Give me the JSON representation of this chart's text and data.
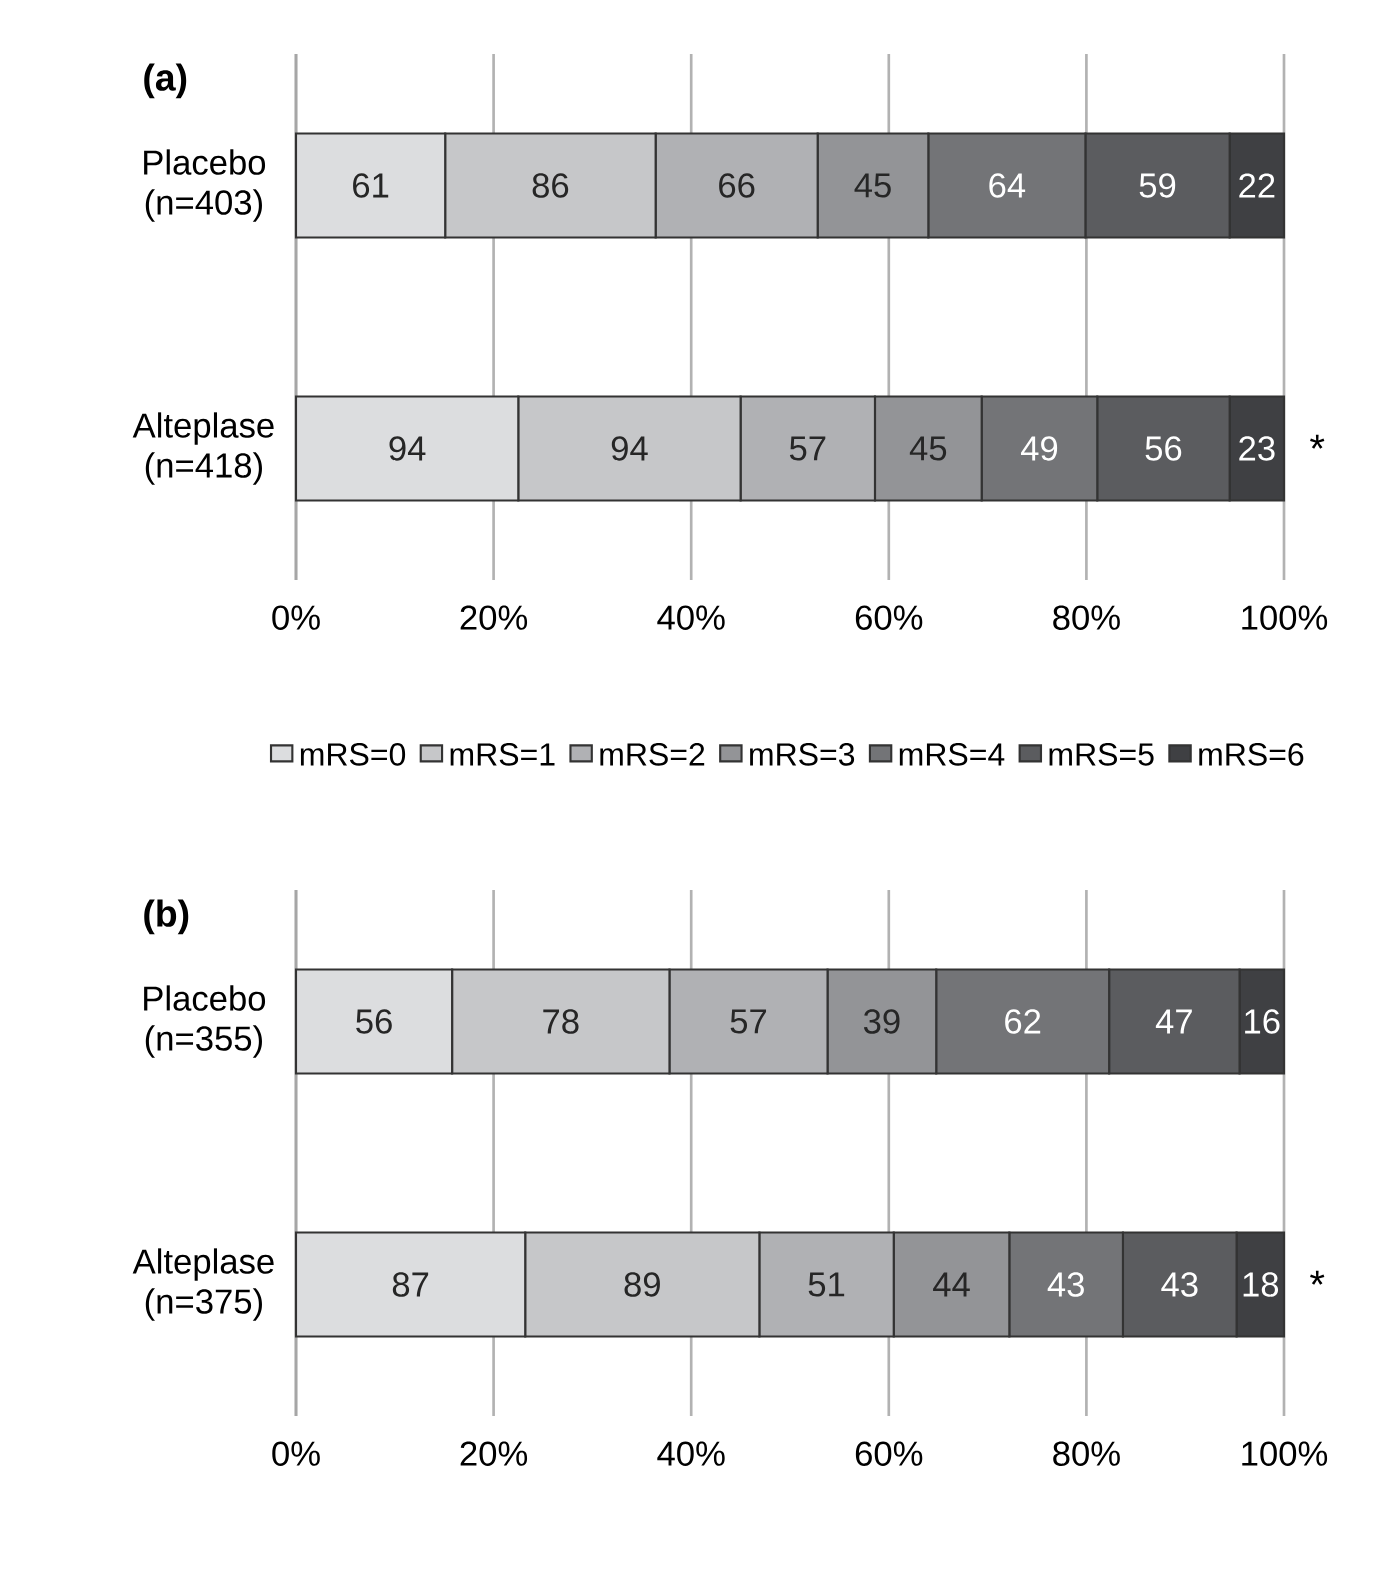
{
  "chart_data": [
    {
      "type": "bar",
      "title": "(a)",
      "orientation": "horizontal",
      "stacked": true,
      "grid": "x",
      "legend": "bottom",
      "categories": [
        "Placebo (n=403)",
        "Alteplase (n=418)"
      ],
      "xlim": [
        0,
        100
      ],
      "xticks": [
        {
          "value": 0,
          "label": "0%"
        },
        {
          "value": 20,
          "label": "20%"
        },
        {
          "value": 40,
          "label": "40%"
        },
        {
          "value": 60,
          "label": "60%"
        },
        {
          "value": 80,
          "label": "80%"
        },
        {
          "value": 100,
          "label": "100%"
        }
      ],
      "series": [
        {
          "name": "mRS=0",
          "color": "#dcdddf",
          "values": [
            15.1,
            22.5
          ]
        },
        {
          "name": "mRS=1",
          "color": "#c6c7c9",
          "values": [
            21.3,
            22.5
          ]
        },
        {
          "name": "mRS=2",
          "color": "#b0b1b4",
          "values": [
            16.4,
            13.6
          ]
        },
        {
          "name": "mRS=3",
          "color": "#939497",
          "values": [
            11.2,
            10.8
          ]
        },
        {
          "name": "mRS=4",
          "color": "#737477",
          "values": [
            15.9,
            11.7
          ]
        },
        {
          "name": "mRS=5",
          "color": "#5b5c5f",
          "values": [
            14.6,
            13.4
          ]
        },
        {
          "name": "mRS=6",
          "color": "#3f4043",
          "values": [
            5.5,
            5.5
          ]
        }
      ],
      "annotations": [
        {
          "text": "61",
          "x": 15.1,
          "y": "Placebo (n=403)"
        },
        {
          "text": "86",
          "x": 36.4,
          "y": "Placebo (n=403)"
        },
        {
          "text": "66",
          "x": 52.8,
          "y": "Placebo (n=403)"
        },
        {
          "text": "45",
          "x": 64.0,
          "y": "Placebo (n=403)"
        },
        {
          "text": "64",
          "x": 79.9,
          "y": "Placebo (n=403)"
        },
        {
          "text": "59",
          "x": 94.5,
          "y": "Placebo (n=403)"
        },
        {
          "text": "22",
          "x": 100,
          "y": "Placebo (n=403)"
        },
        {
          "text": "94",
          "x": 22.5,
          "y": "Alteplase (n=418)"
        },
        {
          "text": "94",
          "x": 45.0,
          "y": "Alteplase (n=418)"
        },
        {
          "text": "57",
          "x": 58.6,
          "y": "Alteplase (n=418)"
        },
        {
          "text": "45",
          "x": 69.4,
          "y": "Alteplase (n=418)"
        },
        {
          "text": "49",
          "x": 81.1,
          "y": "Alteplase (n=418)"
        },
        {
          "text": "56",
          "x": 94.5,
          "y": "Alteplase (n=418)"
        },
        {
          "text": "23",
          "x": 100,
          "y": "Alteplase (n=418)"
        },
        "*"
      ]
    },
    {
      "type": "bar",
      "title": "(b)",
      "orientation": "horizontal",
      "stacked": true,
      "grid": "x",
      "categories": [
        "Placebo (n=355)",
        "Alteplase (n=375)"
      ],
      "xlim": [
        0,
        100
      ],
      "xticks": [
        {
          "value": 0,
          "label": "0%"
        },
        {
          "value": 20,
          "label": "20%"
        },
        {
          "value": 40,
          "label": "40%"
        },
        {
          "value": 60,
          "label": "60%"
        },
        {
          "value": 80,
          "label": "80%"
        },
        {
          "value": 100,
          "label": "100%"
        }
      ],
      "series": [
        {
          "color": "#dcdddf",
          "values": [
            15.8,
            23.2
          ]
        },
        {
          "color": "#c6c7c9",
          "values": [
            22.0,
            23.7
          ]
        },
        {
          "color": "#b0b1b4",
          "values": [
            16.0,
            13.6
          ]
        },
        {
          "color": "#939497",
          "values": [
            11.0,
            11.7
          ]
        },
        {
          "color": "#737477",
          "values": [
            17.5,
            11.5
          ]
        },
        {
          "color": "#5b5c5f",
          "values": [
            13.2,
            11.5
          ]
        },
        {
          "color": "#3f4043",
          "values": [
            4.5,
            4.8
          ]
        }
      ],
      "annotations": [
        {
          "text": "56",
          "x": 15.8,
          "y": "Placebo (n=355)"
        },
        {
          "text": "78",
          "x": 37.8,
          "y": "Placebo (n=355)"
        },
        {
          "text": "57",
          "x": 53.8,
          "y": "Placebo (n=355)"
        },
        {
          "text": "39",
          "x": 64.8,
          "y": "Placebo (n=355)"
        },
        {
          "text": "62",
          "x": 82.3,
          "y": "Placebo (n=355)"
        },
        {
          "text": "47",
          "x": 95.5,
          "y": "Placebo (n=355)"
        },
        {
          "text": "16",
          "x": 100,
          "y": "Placebo (n=355)"
        },
        {
          "text": "87",
          "x": 23.2,
          "y": "Alteplase (n=375)"
        },
        {
          "text": "89",
          "x": 46.9,
          "y": "Alteplase (n=375)"
        },
        {
          "text": "51",
          "x": 60.5,
          "y": "Alteplase (n=375)"
        },
        {
          "text": "44",
          "x": 72.2,
          "y": "Alteplase (n=375)"
        },
        {
          "text": "43",
          "x": 83.7,
          "y": "Alteplase (n=375)"
        },
        {
          "text": "43",
          "x": 95.2,
          "y": "Alteplase (n=375)"
        },
        {
          "text": "18",
          "x": 100,
          "y": "Alteplase (n=375)"
        },
        "*"
      ]
    }
  ]
}
